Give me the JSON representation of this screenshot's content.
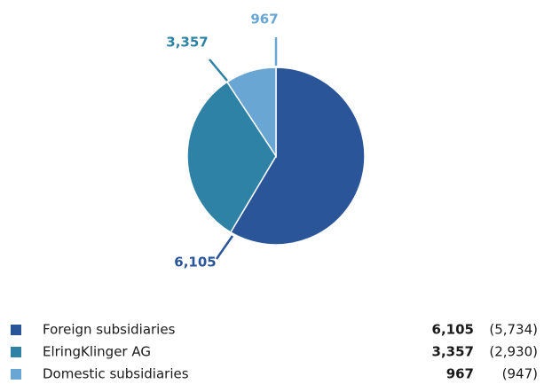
{
  "chart_data": {
    "type": "pie",
    "categories": [
      "Foreign subsidiaries",
      "ElringKlinger AG",
      "Domestic subsidiaries"
    ],
    "values": [
      6105,
      3357,
      967
    ],
    "value_labels": [
      "6,105",
      "3,357",
      "967"
    ],
    "previous_value_labels": [
      "(5,734)",
      "(2,930)",
      "(947)"
    ],
    "colors": [
      "#2a5599",
      "#2e82a6",
      "#6aa6d4"
    ]
  }
}
